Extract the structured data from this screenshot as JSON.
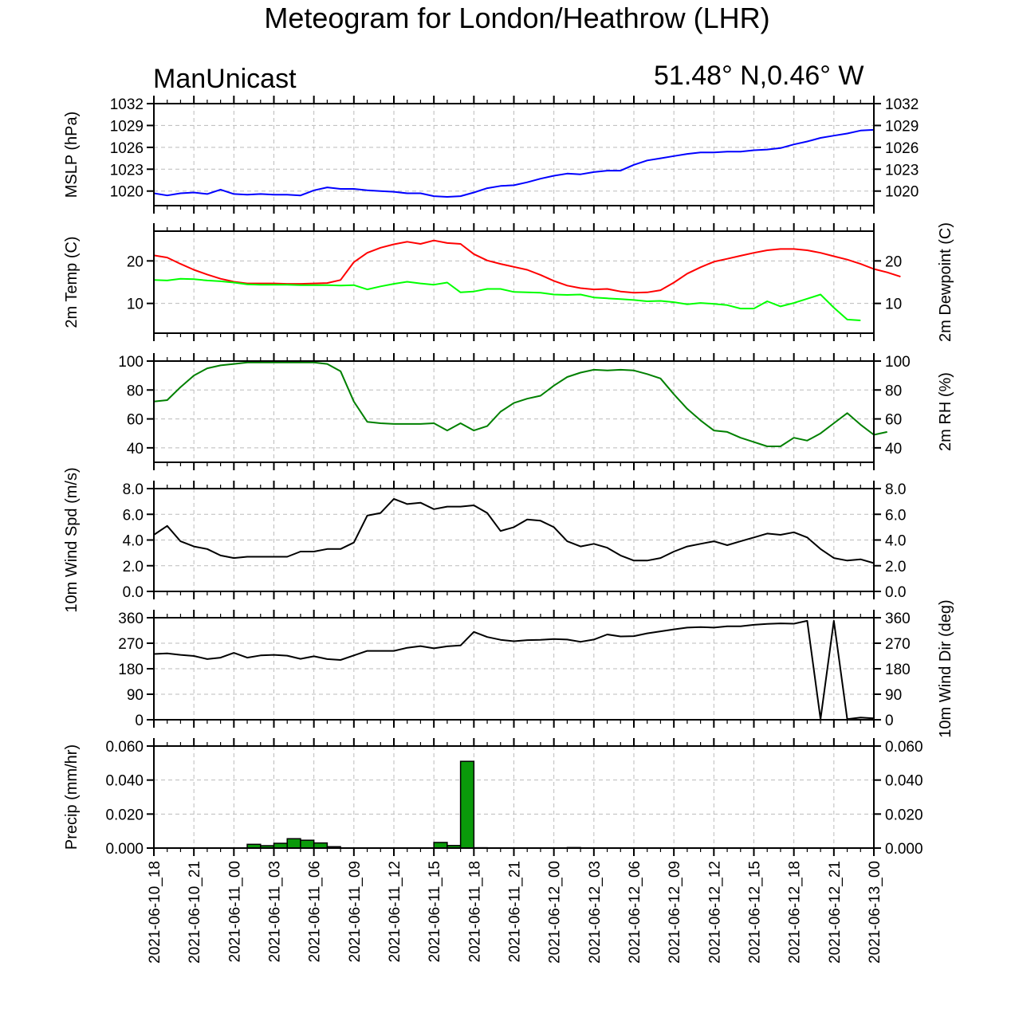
{
  "header": {
    "title": "Meteogram for London/Heathrow (LHR)",
    "model": "ManUnicast",
    "location": "51.48° N,0.46° W"
  },
  "colors": {
    "mslp": "#0000ff",
    "temperature": "#ff0000",
    "dewpoint": "#00ff00",
    "rh": "#008000",
    "wind": "#000000",
    "precip_fill": "#0a9a0a",
    "grid": "#bbbbbb"
  },
  "chart_data": [
    {
      "type": "line",
      "xlim": [
        0,
        54
      ],
      "ylim": [
        1018,
        1032
      ],
      "ylabel": "MSLP (hPa)",
      "ylabel_right": "",
      "yticks": [
        "1020",
        "1023",
        "1026",
        "1029",
        "1032"
      ],
      "grid": true,
      "x_step": 1,
      "series": [
        {
          "values": [
            1019.7,
            1019.4,
            1019.7,
            1019.8,
            1019.6,
            1020.2,
            1019.6,
            1019.5,
            1019.6,
            1019.5,
            1019.5,
            1019.4,
            1020.1,
            1020.5,
            1020.3,
            1020.3,
            1020.1,
            1020.0,
            1019.9,
            1019.7,
            1019.7,
            1019.3,
            1019.2,
            1019.3,
            1019.8,
            1020.4,
            1020.7,
            1020.8,
            1021.2,
            1021.7,
            1022.1,
            1022.4,
            1022.3,
            1022.6,
            1022.8,
            1022.8,
            1023.6,
            1024.2,
            1024.5,
            1024.8,
            1025.1,
            1025.3,
            1025.3,
            1025.4,
            1025.4,
            1025.6,
            1025.7,
            1025.9,
            1026.4,
            1026.8,
            1027.3,
            1027.6,
            1027.9,
            1028.3,
            1028.4
          ]
        }
      ]
    },
    {
      "type": "line",
      "xlim": [
        0,
        54
      ],
      "ylim": [
        3,
        27
      ],
      "ylabel": "2m Temp (C)",
      "ylabel_right": "2m Dewpoint (C)",
      "yticks": [
        "10",
        "20"
      ],
      "grid": true,
      "x_step": 1,
      "series": [
        {
          "values": [
            21.3,
            20.8,
            19.3,
            17.9,
            16.8,
            15.8,
            15.1,
            14.7,
            14.7,
            14.7,
            14.6,
            14.6,
            14.7,
            14.8,
            15.5,
            19.7,
            21.9,
            23.1,
            23.9,
            24.5,
            24.0,
            24.8,
            24.2,
            24.0,
            21.6,
            20.1,
            19.3,
            18.6,
            17.9,
            16.7,
            15.3,
            14.2,
            13.6,
            13.3,
            13.4,
            12.8,
            12.5,
            12.6,
            13.1,
            14.9,
            17.0,
            18.5,
            19.8,
            20.5,
            21.2,
            21.9,
            22.5,
            22.8,
            22.8,
            22.5,
            21.9,
            21.1,
            20.3,
            19.3,
            18.1,
            17.3,
            16.3
          ]
        },
        {
          "values": [
            15.5,
            15.4,
            15.8,
            15.7,
            15.4,
            15.2,
            14.9,
            14.5,
            14.4,
            14.4,
            14.4,
            14.3,
            14.3,
            14.3,
            14.2,
            14.3,
            13.3,
            14.0,
            14.6,
            15.1,
            14.7,
            14.4,
            14.9,
            12.6,
            12.8,
            13.4,
            13.4,
            12.7,
            12.6,
            12.5,
            12.1,
            12.0,
            12.1,
            11.4,
            11.2,
            11.0,
            10.8,
            10.5,
            10.6,
            10.3,
            9.8,
            10.1,
            9.9,
            9.6,
            8.8,
            8.8,
            10.5,
            9.3,
            10.1,
            11.1,
            12.1,
            9.0,
            6.2,
            6.0
          ]
        }
      ]
    },
    {
      "type": "line",
      "xlim": [
        0,
        54
      ],
      "ylim": [
        30,
        100
      ],
      "ylabel": "",
      "ylabel_right": "2m RH (%)",
      "yticks": [
        "40",
        "60",
        "80",
        "100"
      ],
      "grid": true,
      "x_step": 1,
      "series": [
        {
          "values": [
            72,
            73,
            82,
            90,
            95,
            97,
            98,
            99,
            99,
            99,
            99,
            99,
            99,
            98,
            93,
            72,
            58,
            57,
            56.5,
            56.5,
            56.5,
            57,
            52,
            57,
            52,
            55,
            65,
            71,
            74,
            76,
            83,
            89,
            92,
            94,
            93.5,
            94,
            93.5,
            91,
            88,
            77,
            67,
            59,
            52,
            51,
            47,
            44,
            41,
            41,
            47,
            45,
            50,
            57,
            64,
            56,
            49,
            51
          ]
        }
      ]
    },
    {
      "type": "line",
      "xlim": [
        0,
        54
      ],
      "ylim": [
        0,
        8
      ],
      "ylabel": "10m Wind Spd (m/s)",
      "ylabel_right": "",
      "yticks": [
        "0.0",
        "2.0",
        "4.0",
        "6.0",
        "8.0"
      ],
      "grid": true,
      "x_step": 1,
      "series": [
        {
          "values": [
            4.4,
            5.1,
            3.9,
            3.5,
            3.3,
            2.8,
            2.6,
            2.7,
            2.7,
            2.7,
            2.7,
            3.1,
            3.1,
            3.3,
            3.3,
            3.8,
            5.9,
            6.1,
            7.2,
            6.8,
            6.9,
            6.4,
            6.6,
            6.6,
            6.7,
            6.1,
            4.7,
            5.0,
            5.6,
            5.5,
            5.0,
            3.9,
            3.5,
            3.7,
            3.4,
            2.8,
            2.4,
            2.4,
            2.6,
            3.1,
            3.5,
            3.7,
            3.9,
            3.6,
            3.9,
            4.2,
            4.5,
            4.4,
            4.6,
            4.2,
            3.3,
            2.6,
            2.4,
            2.5,
            2.2
          ]
        }
      ]
    },
    {
      "type": "line",
      "xlim": [
        0,
        54
      ],
      "ylim": [
        0,
        360
      ],
      "ylabel": "",
      "ylabel_right": "10m Wind Dir (deg)",
      "yticks": [
        "0",
        "90",
        "180",
        "270",
        "360"
      ],
      "grid": true,
      "x_step": 1,
      "series": [
        {
          "values": [
            232,
            234,
            229,
            225,
            214,
            219,
            236,
            219,
            227,
            229,
            226,
            215,
            224,
            214,
            211,
            227,
            243,
            243,
            243,
            254,
            260,
            252,
            259,
            262,
            310,
            292,
            282,
            277,
            281,
            282,
            285,
            283,
            275,
            283,
            301,
            294,
            295,
            305,
            312,
            319,
            325,
            327,
            325,
            330,
            330,
            335,
            338,
            340,
            339,
            349,
            2,
            349,
            2,
            8,
            5
          ]
        }
      ]
    },
    {
      "type": "bar",
      "xlim": [
        0,
        54
      ],
      "ylim": [
        0,
        0.06
      ],
      "ylabel": "Precip (mm/hr)",
      "ylabel_right": "",
      "yticks": [
        "0.000",
        "0.020",
        "0.040",
        "0.060"
      ],
      "grid": true,
      "x": [
        7,
        8,
        9,
        10,
        11,
        12,
        13,
        21,
        22,
        23,
        24,
        31
      ],
      "values": [
        0.0022,
        0.0014,
        0.0028,
        0.0055,
        0.0046,
        0.003,
        0.0008,
        0.0033,
        0.0015,
        0.051,
        0.0002,
        0.0003
      ]
    }
  ],
  "x_axis": {
    "labels": [
      "2021-06-10_18",
      "2021-06-10_21",
      "2021-06-11_00",
      "2021-06-11_03",
      "2021-06-11_06",
      "2021-06-11_09",
      "2021-06-11_12",
      "2021-06-11_15",
      "2021-06-11_18",
      "2021-06-11_21",
      "2021-06-12_00",
      "2021-06-12_03",
      "2021-06-12_06",
      "2021-06-12_09",
      "2021-06-12_12",
      "2021-06-12_15",
      "2021-06-12_18",
      "2021-06-12_21",
      "2021-06-13_00"
    ]
  }
}
